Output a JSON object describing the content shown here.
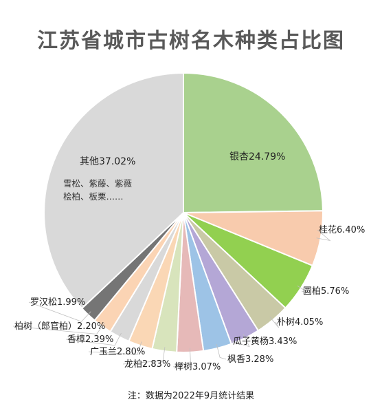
{
  "chart_data": {
    "type": "pie",
    "title": "江苏省城市古树名木种类占比图",
    "slices": [
      {
        "name": "银杏",
        "value": 24.79,
        "label": "银杏24.79%",
        "color": "#a9d18e"
      },
      {
        "name": "桂花",
        "value": 6.4,
        "label": "桂花6.40%",
        "color": "#f8cbad"
      },
      {
        "name": "圆柏",
        "value": 5.76,
        "label": "圆柏5.76%",
        "color": "#92d050"
      },
      {
        "name": "朴树",
        "value": 4.05,
        "label": "朴树4.05%",
        "color": "#c9c9a6"
      },
      {
        "name": "瓜子黄杨",
        "value": 3.43,
        "label": "瓜子黄杨3.43%",
        "color": "#b4a7d6"
      },
      {
        "name": "枫香",
        "value": 3.28,
        "label": "枫香3.28%",
        "color": "#9dc3e6"
      },
      {
        "name": "榉树",
        "value": 3.07,
        "label": "榉树3.07%",
        "color": "#e6b9b8"
      },
      {
        "name": "龙柏",
        "value": 2.83,
        "label": "龙柏2.83%",
        "color": "#d8e4bc"
      },
      {
        "name": "广玉兰",
        "value": 2.8,
        "label": "广玉兰2.80%",
        "color": "#fad7b5"
      },
      {
        "name": "香樟",
        "value": 2.39,
        "label": "香樟2.39%",
        "color": "#d9d9d9"
      },
      {
        "name": "柏树（郎官柏）",
        "value": 2.2,
        "label": "柏树（郎官柏）2.20%",
        "color": "#fbd4b4"
      },
      {
        "name": "罗汉松",
        "value": 1.99,
        "label": "罗汉松1.99%",
        "color": "#757575"
      },
      {
        "name": "其他",
        "value": 37.02,
        "label": "其他37.02%",
        "color": "#d9d9d9",
        "sub_lines": [
          "雪松、紫藤、紫薇",
          "桧柏、板栗……"
        ]
      }
    ]
  },
  "note": "注：数据为2022年9月统计结果"
}
